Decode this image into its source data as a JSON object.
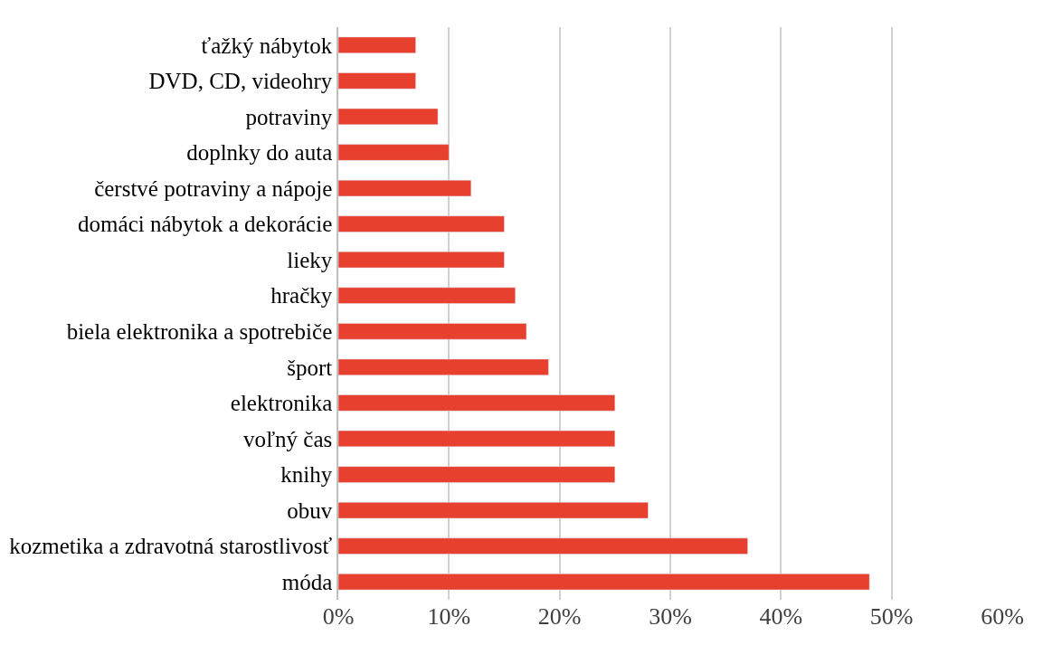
{
  "chart_data": {
    "type": "bar",
    "orientation": "horizontal",
    "categories": [
      "ťažký nábytok",
      "DVD, CD, videohry",
      "potraviny",
      "doplnky do auta",
      "čerstvé potraviny a nápoje",
      "domáci nábytok a dekorácie",
      "lieky",
      "hračky",
      "biela elektronika a spotrebiče",
      "šport",
      "elektronika",
      "voľný čas",
      "knihy",
      "obuv",
      "kozmetika a zdravotná starostlivosť",
      "móda"
    ],
    "values": [
      7,
      7,
      9,
      10,
      12,
      15,
      15,
      16,
      17,
      19,
      25,
      25,
      25,
      28,
      37,
      48
    ],
    "color": "#e8402f",
    "xlim": [
      0,
      60
    ],
    "xticks": [
      {
        "value": 0,
        "label": "0%"
      },
      {
        "value": 10,
        "label": "10%"
      },
      {
        "value": 20,
        "label": "20%"
      },
      {
        "value": 30,
        "label": "30%"
      },
      {
        "value": 40,
        "label": "40%"
      },
      {
        "value": 50,
        "label": "50%"
      },
      {
        "value": 60,
        "label": "60%"
      }
    ],
    "grid": "x"
  }
}
